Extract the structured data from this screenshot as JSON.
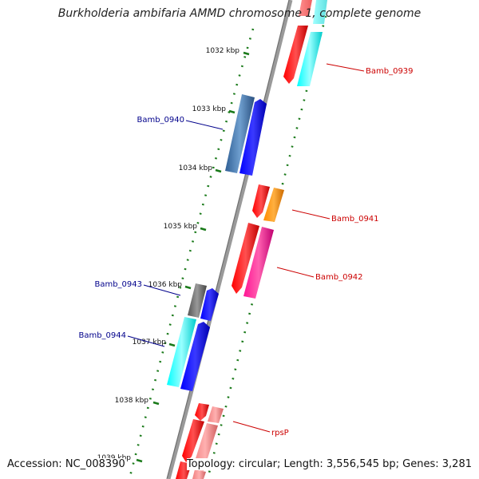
{
  "title": "Burkholderia ambifaria AMMD chromosome 1, complete genome",
  "accession": "Accession: NC_008390",
  "summary": "Topology: circular; Length: 3,556,545 bp; Genes: 3,281",
  "ticks": [
    "1032 kbp",
    "1033 kbp",
    "1034 kbp",
    "1035 kbp",
    "1036 kbp",
    "1037 kbp",
    "1038 kbp",
    "1039 kbp"
  ],
  "genes": [
    {
      "id": "bamb-0939",
      "label": "Bamb_0939",
      "color": "#cc0000"
    },
    {
      "id": "bamb-0940",
      "label": "Bamb_0940",
      "color": "#00008b"
    },
    {
      "id": "bamb-0941",
      "label": "Bamb_0941",
      "color": "#cc0000"
    },
    {
      "id": "bamb-0942",
      "label": "Bamb_0942",
      "color": "#cc0000"
    },
    {
      "id": "bamb-0943",
      "label": "Bamb_0943",
      "color": "#00008b"
    },
    {
      "id": "bamb-0944",
      "label": "Bamb_0944",
      "color": "#00008b"
    },
    {
      "id": "rpsp",
      "label": "rpsP",
      "color": "#cc0000"
    }
  ],
  "colors": {
    "backbone": "#888888",
    "tick": "#1a7a1a",
    "red": "#ff0000",
    "cyan": "#00e5e5",
    "blue": "#0000ee",
    "steelblue": "#3a6ea5",
    "orange": "#ff8c00",
    "pink": "#ff1493",
    "gray": "#6e6e6e",
    "salmon": "#f08080"
  }
}
